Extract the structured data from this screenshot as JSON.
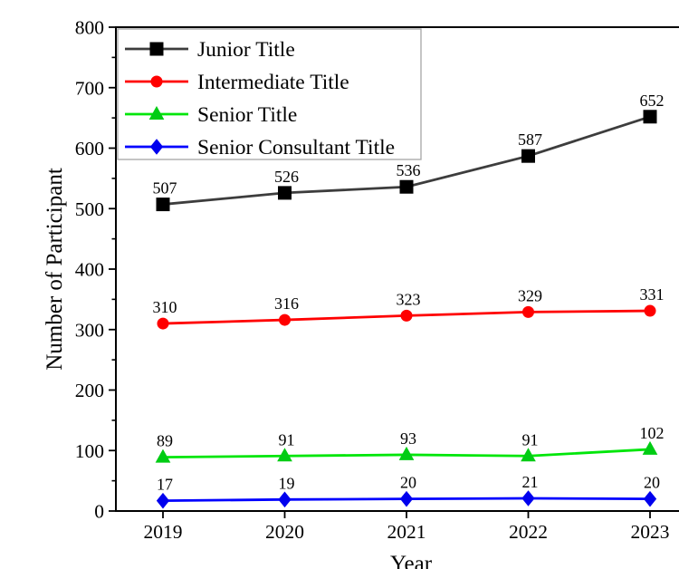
{
  "chart_data": {
    "type": "line",
    "title": "",
    "xlabel": "Year",
    "ylabel": "Number of Participant",
    "categories": [
      "2019",
      "2020",
      "2021",
      "2022",
      "2023"
    ],
    "ylim": [
      0,
      800
    ],
    "yticks": [
      0,
      100,
      200,
      300,
      400,
      500,
      600,
      700,
      800
    ],
    "minor_ytick_step": 50,
    "grid": false,
    "data_labels": true,
    "legend_position": "upper-left",
    "series": [
      {
        "name": "Junior Title",
        "values": [
          507,
          526,
          536,
          587,
          652
        ],
        "line_color": "#3d3d3d",
        "marker": "square",
        "marker_color": "#000000"
      },
      {
        "name": "Intermediate Title",
        "values": [
          310,
          316,
          323,
          329,
          331
        ],
        "line_color": "#ff0000",
        "marker": "circle",
        "marker_color": "#ff0000"
      },
      {
        "name": "Senior Title",
        "values": [
          89,
          91,
          93,
          91,
          102
        ],
        "line_color": "#00e60a",
        "marker": "triangle",
        "marker_color": "#00cc14"
      },
      {
        "name": "Senior Consultant Title",
        "values": [
          17,
          19,
          20,
          21,
          20
        ],
        "line_color": "#0000ff",
        "marker": "diamond",
        "marker_color": "#0000ee"
      }
    ],
    "colors": {
      "frame": "#000000",
      "tick": "#000000",
      "label_text": "#000000",
      "legend_border": "#a6a6a6",
      "legend_bg": "#ffffff"
    }
  }
}
